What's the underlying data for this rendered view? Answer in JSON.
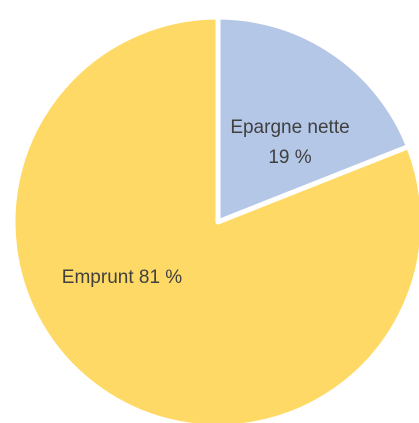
{
  "chart_data": {
    "type": "pie",
    "slices": [
      {
        "label": "Epargne nette",
        "value": 19,
        "value_text": "19 %",
        "color": "#b4c7e7"
      },
      {
        "label": "Emprunt",
        "value": 81,
        "value_text": "81 %",
        "color": "#ffd966"
      }
    ],
    "start": "12 o'clock",
    "direction": "clockwise",
    "slice_separator_color": "#ffffff"
  },
  "labels": {
    "epargne_line1": "Epargne nette",
    "epargne_line2": "19 %",
    "emprunt": "Emprunt 81 %"
  }
}
